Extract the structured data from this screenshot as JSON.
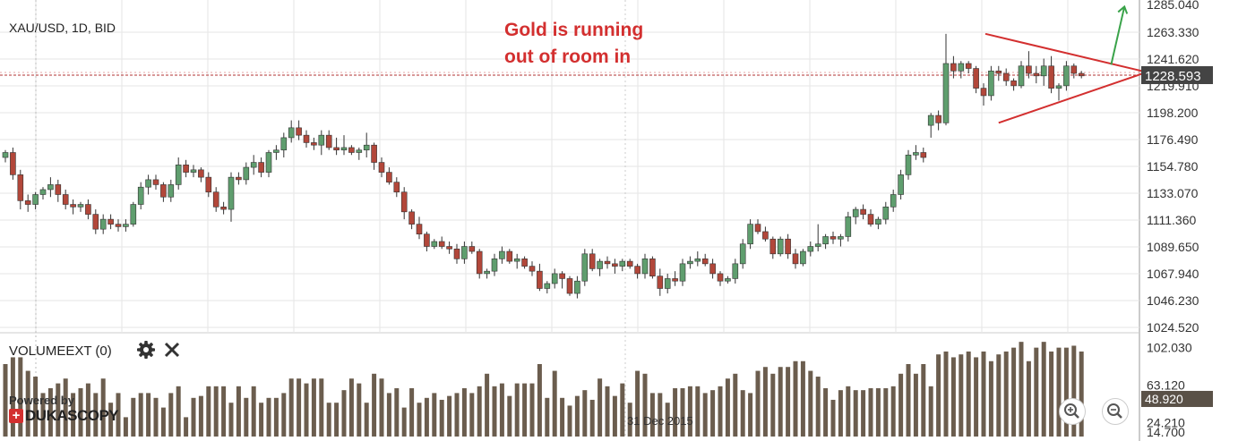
{
  "header": {
    "symbol_label": "XAU/USD, 1D, BID",
    "annotation_line1": "Gold is running",
    "annotation_line2": "out of room in"
  },
  "volume_panel": {
    "label": "VOLUMEEXT (0)",
    "settings_icon": "gear-icon",
    "close_icon": "close-icon"
  },
  "watermark": {
    "line1": "Powered by",
    "line2": "DUKASCOPY",
    "logo_icon": "swiss-cross-icon"
  },
  "zoom": {
    "zoom_in_icon": "zoom-in-icon",
    "zoom_out_icon": "zoom-out-icon"
  },
  "colors": {
    "up": "#5f9e6e",
    "down": "#b2473a",
    "volume": "#6b5d4e",
    "annotation_red": "#d32f2f",
    "arrow_green": "#3aa34a",
    "grid": "#e6e6e6",
    "price_tag_bg": "#444444"
  },
  "chart_data": {
    "type": "candlestick",
    "symbol": "XAU/USD",
    "interval": "1D",
    "side": "BID",
    "price_axis_ticks": [
      "1263.330",
      "1241.620",
      "1219.910",
      "1198.200",
      "1176.490",
      "1154.780",
      "1133.070",
      "1111.360",
      "1089.650",
      "1067.940",
      "1046.230",
      "1024.520"
    ],
    "price_axis_top_cut": "1285.040",
    "current_price": "1228.593",
    "ylim": [
      1024.52,
      1285.04
    ],
    "volume_axis_ticks": [
      "102.030",
      "63.120",
      "24.210",
      "14.700"
    ],
    "volume_current": "48.920",
    "volume_ylim": [
      10,
      110
    ],
    "date_label": "31 Dec 2015",
    "date_marker_index": 80,
    "candles": [
      [
        1162,
        1168,
        1158,
        1166
      ],
      [
        1166,
        1170,
        1144,
        1148
      ],
      [
        1148,
        1152,
        1120,
        1127
      ],
      [
        1127,
        1132,
        1118,
        1124
      ],
      [
        1124,
        1134,
        1120,
        1132
      ],
      [
        1132,
        1138,
        1128,
        1136
      ],
      [
        1136,
        1146,
        1130,
        1140
      ],
      [
        1140,
        1144,
        1126,
        1132
      ],
      [
        1132,
        1136,
        1120,
        1124
      ],
      [
        1124,
        1128,
        1116,
        1122
      ],
      [
        1122,
        1126,
        1118,
        1124
      ],
      [
        1124,
        1128,
        1112,
        1116
      ],
      [
        1116,
        1120,
        1100,
        1104
      ],
      [
        1104,
        1116,
        1100,
        1112
      ],
      [
        1112,
        1116,
        1104,
        1108
      ],
      [
        1108,
        1112,
        1102,
        1106
      ],
      [
        1106,
        1112,
        1102,
        1108
      ],
      [
        1108,
        1126,
        1106,
        1124
      ],
      [
        1124,
        1142,
        1120,
        1138
      ],
      [
        1138,
        1148,
        1132,
        1144
      ],
      [
        1144,
        1148,
        1136,
        1140
      ],
      [
        1140,
        1142,
        1126,
        1130
      ],
      [
        1130,
        1144,
        1126,
        1140
      ],
      [
        1140,
        1162,
        1136,
        1156
      ],
      [
        1156,
        1160,
        1146,
        1150
      ],
      [
        1150,
        1156,
        1146,
        1152
      ],
      [
        1152,
        1154,
        1142,
        1146
      ],
      [
        1146,
        1150,
        1130,
        1134
      ],
      [
        1134,
        1138,
        1118,
        1122
      ],
      [
        1122,
        1126,
        1116,
        1120
      ],
      [
        1120,
        1150,
        1110,
        1146
      ],
      [
        1146,
        1150,
        1140,
        1144
      ],
      [
        1144,
        1158,
        1140,
        1154
      ],
      [
        1154,
        1164,
        1148,
        1158
      ],
      [
        1158,
        1162,
        1146,
        1150
      ],
      [
        1150,
        1168,
        1146,
        1166
      ],
      [
        1166,
        1172,
        1160,
        1168
      ],
      [
        1168,
        1182,
        1162,
        1178
      ],
      [
        1178,
        1192,
        1174,
        1186
      ],
      [
        1186,
        1192,
        1176,
        1180
      ],
      [
        1180,
        1184,
        1170,
        1174
      ],
      [
        1174,
        1178,
        1168,
        1172
      ],
      [
        1172,
        1184,
        1164,
        1180
      ],
      [
        1180,
        1184,
        1168,
        1170
      ],
      [
        1170,
        1178,
        1164,
        1168
      ],
      [
        1168,
        1180,
        1164,
        1170
      ],
      [
        1170,
        1172,
        1164,
        1166
      ],
      [
        1166,
        1170,
        1160,
        1168
      ],
      [
        1168,
        1182,
        1162,
        1172
      ],
      [
        1172,
        1174,
        1152,
        1158
      ],
      [
        1158,
        1162,
        1146,
        1150
      ],
      [
        1150,
        1154,
        1140,
        1142
      ],
      [
        1142,
        1146,
        1130,
        1134
      ],
      [
        1134,
        1138,
        1112,
        1118
      ],
      [
        1118,
        1120,
        1104,
        1108
      ],
      [
        1108,
        1114,
        1096,
        1100
      ],
      [
        1100,
        1102,
        1086,
        1090
      ],
      [
        1090,
        1096,
        1088,
        1094
      ],
      [
        1094,
        1098,
        1088,
        1090
      ],
      [
        1090,
        1094,
        1084,
        1088
      ],
      [
        1088,
        1092,
        1076,
        1080
      ],
      [
        1080,
        1094,
        1076,
        1090
      ],
      [
        1090,
        1094,
        1084,
        1086
      ],
      [
        1086,
        1088,
        1064,
        1068
      ],
      [
        1068,
        1072,
        1064,
        1070
      ],
      [
        1070,
        1084,
        1066,
        1080
      ],
      [
        1080,
        1090,
        1076,
        1086
      ],
      [
        1086,
        1088,
        1076,
        1078
      ],
      [
        1078,
        1084,
        1072,
        1080
      ],
      [
        1080,
        1082,
        1072,
        1074
      ],
      [
        1074,
        1078,
        1066,
        1070
      ],
      [
        1070,
        1076,
        1054,
        1056
      ],
      [
        1056,
        1062,
        1052,
        1060
      ],
      [
        1060,
        1072,
        1056,
        1068
      ],
      [
        1068,
        1070,
        1056,
        1064
      ],
      [
        1064,
        1066,
        1050,
        1052
      ],
      [
        1052,
        1066,
        1048,
        1062
      ],
      [
        1062,
        1088,
        1058,
        1084
      ],
      [
        1084,
        1088,
        1070,
        1072
      ],
      [
        1072,
        1080,
        1066,
        1078
      ],
      [
        1078,
        1082,
        1072,
        1076
      ],
      [
        1076,
        1080,
        1068,
        1074
      ],
      [
        1074,
        1080,
        1070,
        1078
      ],
      [
        1078,
        1080,
        1072,
        1074
      ],
      [
        1074,
        1076,
        1064,
        1068
      ],
      [
        1068,
        1084,
        1064,
        1080
      ],
      [
        1080,
        1082,
        1064,
        1066
      ],
      [
        1066,
        1072,
        1050,
        1056
      ],
      [
        1056,
        1068,
        1052,
        1064
      ],
      [
        1064,
        1070,
        1058,
        1062
      ],
      [
        1062,
        1080,
        1058,
        1076
      ],
      [
        1076,
        1082,
        1072,
        1078
      ],
      [
        1078,
        1086,
        1074,
        1080
      ],
      [
        1080,
        1084,
        1074,
        1076
      ],
      [
        1076,
        1080,
        1064,
        1068
      ],
      [
        1068,
        1070,
        1058,
        1062
      ],
      [
        1062,
        1066,
        1060,
        1064
      ],
      [
        1064,
        1080,
        1060,
        1076
      ],
      [
        1076,
        1096,
        1072,
        1092
      ],
      [
        1092,
        1112,
        1088,
        1108
      ],
      [
        1108,
        1112,
        1100,
        1102
      ],
      [
        1102,
        1106,
        1094,
        1096
      ],
      [
        1096,
        1098,
        1080,
        1084
      ],
      [
        1084,
        1098,
        1082,
        1096
      ],
      [
        1096,
        1100,
        1080,
        1084
      ],
      [
        1084,
        1088,
        1072,
        1076
      ],
      [
        1076,
        1088,
        1074,
        1086
      ],
      [
        1086,
        1094,
        1082,
        1090
      ],
      [
        1090,
        1108,
        1086,
        1092
      ],
      [
        1092,
        1100,
        1088,
        1098
      ],
      [
        1098,
        1102,
        1092,
        1096
      ],
      [
        1096,
        1100,
        1090,
        1098
      ],
      [
        1098,
        1118,
        1094,
        1114
      ],
      [
        1114,
        1122,
        1108,
        1120
      ],
      [
        1120,
        1124,
        1112,
        1116
      ],
      [
        1116,
        1120,
        1106,
        1108
      ],
      [
        1108,
        1114,
        1104,
        1112
      ],
      [
        1112,
        1126,
        1108,
        1122
      ],
      [
        1122,
        1136,
        1118,
        1132
      ],
      [
        1132,
        1152,
        1128,
        1148
      ],
      [
        1148,
        1168,
        1144,
        1164
      ],
      [
        1164,
        1172,
        1160,
        1166
      ],
      [
        1166,
        1170,
        1158,
        1162
      ],
      [
        1188,
        1198,
        1178,
        1196
      ],
      [
        1196,
        1200,
        1184,
        1190
      ],
      [
        1190,
        1262,
        1188,
        1238
      ],
      [
        1238,
        1244,
        1226,
        1232
      ],
      [
        1232,
        1240,
        1226,
        1238
      ],
      [
        1238,
        1240,
        1230,
        1234
      ],
      [
        1234,
        1236,
        1214,
        1218
      ],
      [
        1218,
        1222,
        1204,
        1212
      ],
      [
        1212,
        1236,
        1208,
        1232
      ],
      [
        1232,
        1236,
        1224,
        1230
      ],
      [
        1230,
        1234,
        1220,
        1224
      ],
      [
        1224,
        1226,
        1216,
        1220
      ],
      [
        1220,
        1240,
        1218,
        1236
      ],
      [
        1236,
        1248,
        1226,
        1230
      ],
      [
        1230,
        1236,
        1222,
        1228
      ],
      [
        1228,
        1242,
        1220,
        1236
      ],
      [
        1236,
        1244,
        1214,
        1218
      ],
      [
        1218,
        1222,
        1208,
        1220
      ],
      [
        1220,
        1240,
        1216,
        1236
      ],
      [
        1236,
        1238,
        1226,
        1230
      ],
      [
        1230,
        1232,
        1226,
        1228
      ]
    ],
    "volumes": [
      85,
      92,
      92,
      78,
      72,
      55,
      60,
      65,
      70,
      55,
      60,
      65,
      55,
      70,
      45,
      55,
      30,
      50,
      55,
      55,
      50,
      40,
      55,
      62,
      30,
      50,
      52,
      62,
      62,
      62,
      45,
      62,
      50,
      62,
      45,
      50,
      50,
      55,
      70,
      70,
      65,
      70,
      70,
      45,
      45,
      58,
      70,
      65,
      45,
      75,
      70,
      55,
      60,
      40,
      60,
      45,
      50,
      55,
      48,
      52,
      55,
      60,
      55,
      62,
      75,
      62,
      65,
      52,
      65,
      65,
      65,
      85,
      50,
      78,
      50,
      42,
      52,
      58,
      48,
      70,
      62,
      52,
      65,
      45,
      78,
      75,
      55,
      55,
      45,
      60,
      60,
      62,
      62,
      55,
      58,
      62,
      70,
      75,
      58,
      55,
      78,
      82,
      75,
      82,
      82,
      88,
      88,
      78,
      72,
      60,
      48,
      58,
      62,
      58,
      58,
      60,
      60,
      60,
      62,
      75,
      85,
      75,
      85,
      62,
      95,
      98,
      92,
      95,
      98,
      92,
      98,
      88,
      95,
      98,
      102,
      108,
      88,
      102,
      108,
      98,
      102,
      102,
      104,
      98
    ]
  }
}
